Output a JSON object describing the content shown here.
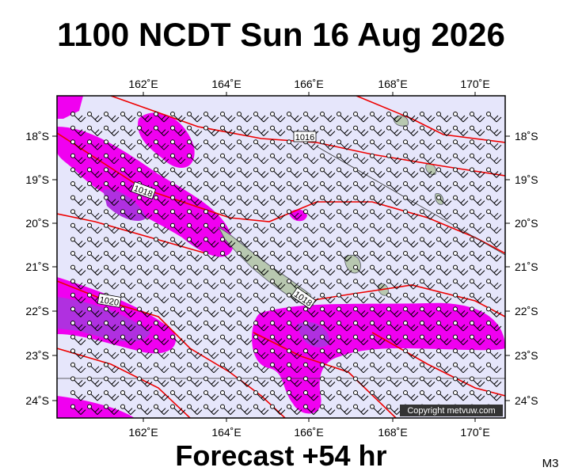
{
  "header": {
    "title": "1100 NCDT Sun 16 Aug 2026"
  },
  "map": {
    "longitude_labels": [
      "162˚E",
      "164˚E",
      "166˚E",
      "168˚E",
      "170˚E"
    ],
    "latitude_labels": [
      "18˚S",
      "19˚S",
      "20˚S",
      "21˚S",
      "22˚S",
      "23˚S",
      "24˚S"
    ],
    "isobar_labels": [
      "1016",
      "1018",
      "1020",
      "1018"
    ],
    "copyright": "Copyright metvuw.com"
  },
  "footer": {
    "forecast": "Forecast +54 hr",
    "code": "M3"
  }
}
